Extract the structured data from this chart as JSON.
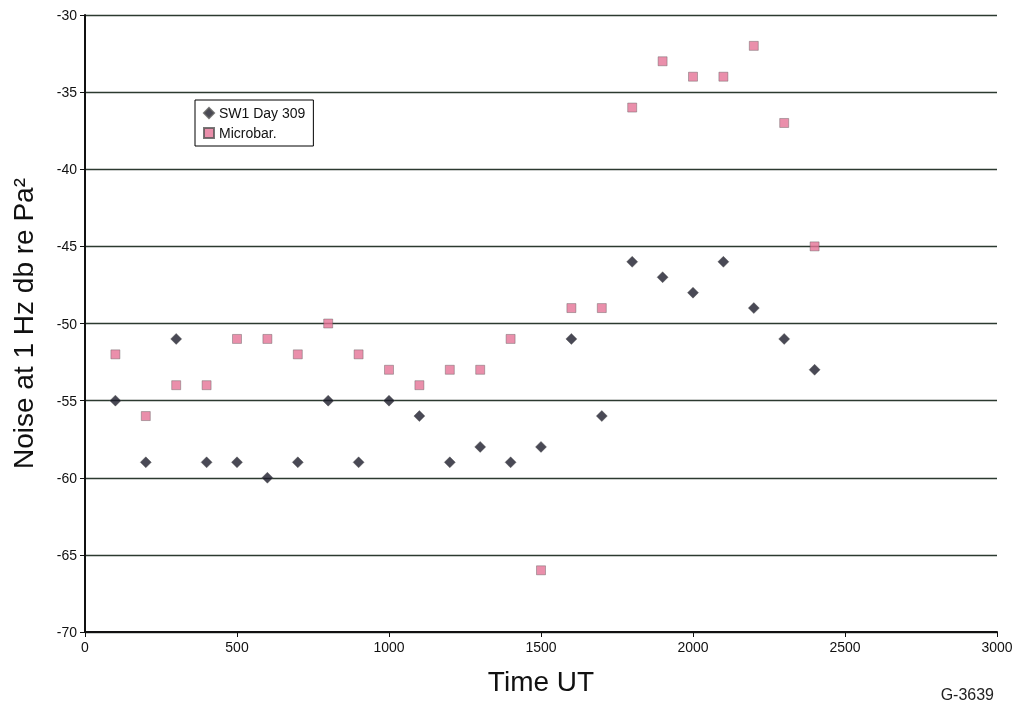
{
  "chart_data": {
    "type": "scatter",
    "xlabel": "Time UT",
    "ylabel": "Noise at 1 Hz db re Pa²",
    "x": [
      100,
      200,
      300,
      400,
      500,
      600,
      700,
      800,
      900,
      1000,
      1100,
      1200,
      1300,
      1400,
      1500,
      1600,
      1700,
      1800,
      1900,
      2000,
      2100,
      2200,
      2300,
      2400
    ],
    "series": [
      {
        "name": "SW1 Day 309",
        "color": "#1c1c2a",
        "marker": "diamond",
        "values": [
          -55,
          -59,
          -51,
          -59,
          -59,
          -60,
          -59,
          -55,
          -59,
          -55,
          -56,
          -59,
          -58,
          -59,
          -58,
          -51,
          -56,
          -46,
          -47,
          -48,
          -46,
          -49,
          -51,
          -53
        ]
      },
      {
        "name": "Microbar.",
        "color": "#e57396",
        "marker": "square",
        "values": [
          -52,
          -56,
          -54,
          -54,
          -51,
          -51,
          -52,
          -50,
          -52,
          -53,
          -54,
          -53,
          -53,
          -51,
          -66,
          -49,
          -49,
          -36,
          -33,
          -34,
          -34,
          -32,
          -37,
          -45
        ]
      }
    ],
    "xlim": [
      0,
      3000
    ],
    "xticks": [
      0,
      500,
      1000,
      1500,
      2000,
      2500,
      3000
    ],
    "ylim": [
      -70,
      -30
    ],
    "yticks": [
      -70,
      -65,
      -60,
      -55,
      -50,
      -45,
      -40,
      -35,
      -30
    ],
    "grid": "y",
    "legend": "top left",
    "annotations": [
      "G-3639"
    ]
  }
}
